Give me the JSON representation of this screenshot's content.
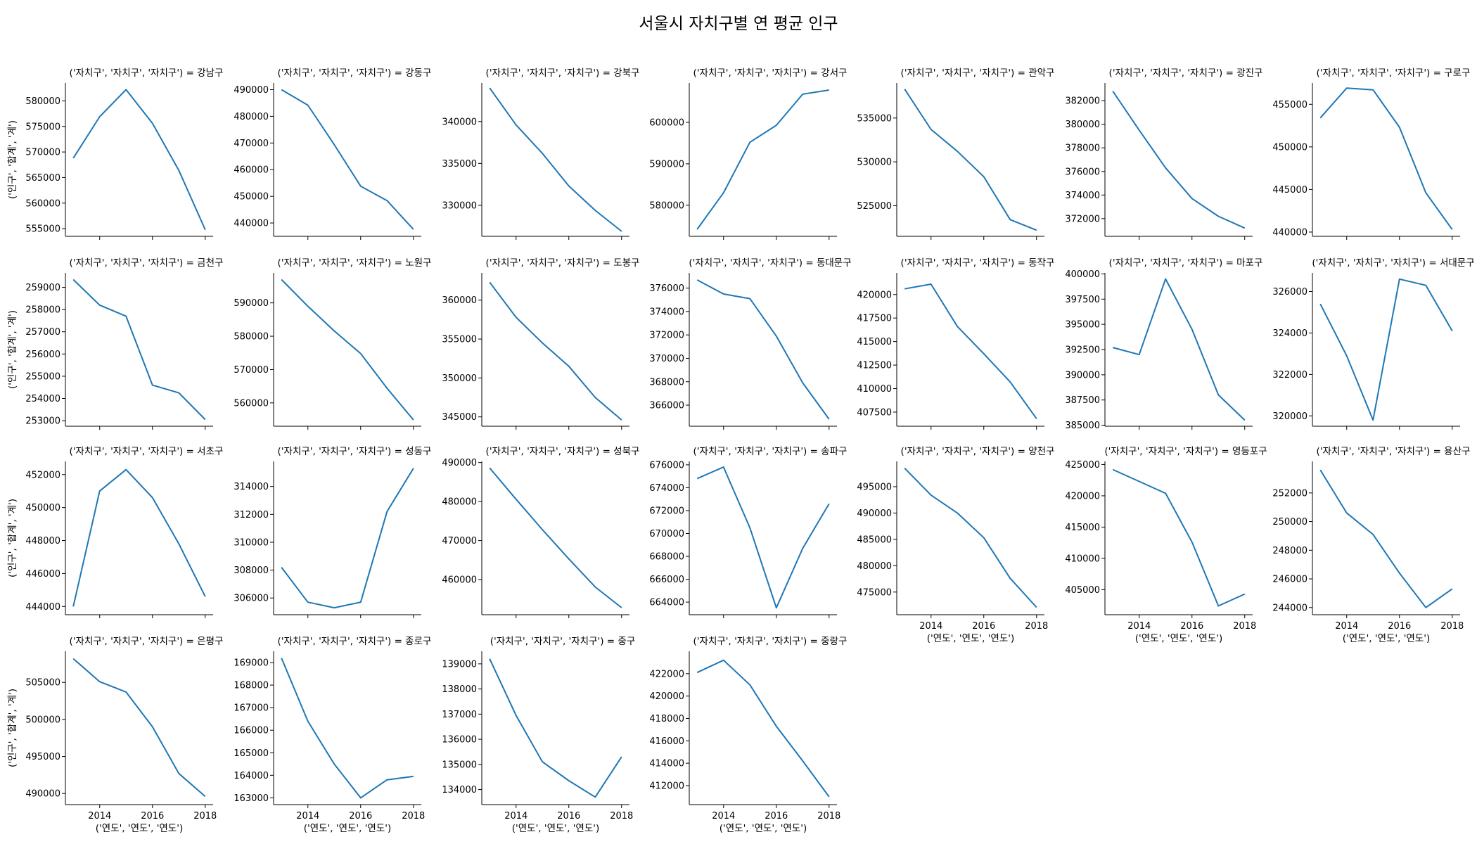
{
  "suptitle": "서울시 자치구별 연 평균 인구",
  "series_color": "#1f77b4",
  "chart_data": {
    "type": "line",
    "layout": "facet-grid",
    "facet_columns": 7,
    "x": [
      2013,
      2014,
      2015,
      2016,
      2017,
      2018
    ],
    "xticks": [
      2014,
      2016,
      2018
    ],
    "xlabel": "('연도', '연도', '연도')",
    "ylabel": "('인구', '합계', '계')",
    "title_prefix": "('자치구', '자치구', '자치구') = ",
    "facets": [
      {
        "name": "강남구",
        "values": [
          568800,
          576900,
          582200,
          575600,
          566400,
          554800
        ],
        "ylim": [
          553500,
          583500
        ],
        "yticks": [
          555000,
          560000,
          565000,
          570000,
          575000,
          580000
        ]
      },
      {
        "name": "강동구",
        "values": [
          490000,
          484200,
          469400,
          453800,
          448400,
          437600
        ],
        "ylim": [
          435000,
          492500
        ],
        "yticks": [
          440000,
          450000,
          460000,
          470000,
          480000,
          490000
        ]
      },
      {
        "name": "강북구",
        "values": [
          344000,
          339600,
          336200,
          332300,
          329400,
          326900
        ],
        "ylim": [
          326300,
          344600
        ],
        "yticks": [
          330000,
          335000,
          340000
        ]
      },
      {
        "name": "강서구",
        "values": [
          574200,
          583000,
          595200,
          599300,
          606800,
          607800
        ],
        "ylim": [
          572500,
          609500
        ],
        "yticks": [
          580000,
          590000,
          600000
        ]
      },
      {
        "name": "관악구",
        "values": [
          538300,
          533700,
          531200,
          528300,
          523400,
          522200
        ],
        "ylim": [
          521500,
          539000
        ],
        "yticks": [
          525000,
          530000,
          535000
        ]
      },
      {
        "name": "광진구",
        "values": [
          382800,
          379500,
          376300,
          373700,
          372200,
          371200
        ],
        "ylim": [
          370500,
          383500
        ],
        "yticks": [
          372000,
          374000,
          376000,
          378000,
          380000,
          382000
        ]
      },
      {
        "name": "구로구",
        "values": [
          453400,
          456900,
          456700,
          452300,
          444600,
          440300
        ],
        "ylim": [
          439500,
          457500
        ],
        "yticks": [
          440000,
          445000,
          450000,
          455000
        ]
      },
      {
        "name": "금천구",
        "values": [
          259350,
          258200,
          257700,
          254600,
          254250,
          253050
        ],
        "ylim": [
          252750,
          259650
        ],
        "yticks": [
          253000,
          254000,
          255000,
          256000,
          257000,
          258000,
          259000
        ]
      },
      {
        "name": "노원구",
        "values": [
          597000,
          589000,
          581600,
          574800,
          564400,
          554900
        ],
        "ylim": [
          553000,
          599000
        ],
        "yticks": [
          560000,
          570000,
          580000,
          590000
        ]
      },
      {
        "name": "도봉구",
        "values": [
          362300,
          357800,
          354500,
          351500,
          347500,
          344600
        ],
        "ylim": [
          343800,
          363500
        ],
        "yticks": [
          345000,
          350000,
          355000,
          360000
        ]
      },
      {
        "name": "동대문구",
        "values": [
          376700,
          375500,
          375100,
          371900,
          367900,
          364800
        ],
        "ylim": [
          364200,
          377300
        ],
        "yticks": [
          366000,
          368000,
          370000,
          372000,
          374000,
          376000
        ]
      },
      {
        "name": "동작구",
        "values": [
          420600,
          421100,
          416600,
          413700,
          410700,
          406800
        ],
        "ylim": [
          406000,
          422300
        ],
        "yticks": [
          407500,
          410000,
          412500,
          415000,
          417500,
          420000
        ]
      },
      {
        "name": "마포구",
        "values": [
          392700,
          392000,
          399500,
          394500,
          388000,
          385500
        ],
        "ylim": [
          384900,
          400100
        ],
        "yticks": [
          385000,
          387500,
          390000,
          392500,
          395000,
          397500,
          400000
        ]
      },
      {
        "name": "서대문구",
        "values": [
          325400,
          322900,
          319800,
          326600,
          326300,
          324100
        ],
        "ylim": [
          319500,
          326900
        ],
        "yticks": [
          320000,
          322000,
          324000,
          326000
        ]
      },
      {
        "name": "서초구",
        "values": [
          444000,
          451000,
          452300,
          450600,
          447800,
          444600
        ],
        "ylim": [
          443500,
          452800
        ],
        "yticks": [
          444000,
          446000,
          448000,
          450000,
          452000
        ]
      },
      {
        "name": "성동구",
        "values": [
          308200,
          305700,
          305300,
          305700,
          312200,
          315300
        ],
        "ylim": [
          304800,
          315800
        ],
        "yticks": [
          306000,
          308000,
          310000,
          312000,
          314000
        ]
      },
      {
        "name": "성북구",
        "values": [
          488600,
          480600,
          472800,
          465300,
          458100,
          452800
        ],
        "ylim": [
          451000,
          490300
        ],
        "yticks": [
          460000,
          470000,
          480000,
          490000
        ]
      },
      {
        "name": "송파구",
        "values": [
          674800,
          675800,
          670500,
          663500,
          668700,
          672600
        ],
        "ylim": [
          662900,
          676300
        ],
        "yticks": [
          664000,
          666000,
          668000,
          670000,
          672000,
          674000,
          676000
        ]
      },
      {
        "name": "양천구",
        "values": [
          498500,
          493400,
          490000,
          485300,
          477600,
          472100
        ],
        "ylim": [
          470700,
          499800
        ],
        "yticks": [
          475000,
          480000,
          485000,
          490000,
          495000
        ]
      },
      {
        "name": "영등포구",
        "values": [
          424200,
          422300,
          420400,
          412600,
          402400,
          404300
        ],
        "ylim": [
          401000,
          425500
        ],
        "yticks": [
          405000,
          410000,
          415000,
          420000,
          425000
        ]
      },
      {
        "name": "용산구",
        "values": [
          253600,
          250600,
          249100,
          246400,
          244000,
          245300
        ],
        "ylim": [
          243500,
          254200
        ],
        "yticks": [
          244000,
          246000,
          248000,
          250000,
          252000
        ]
      },
      {
        "name": "은평구",
        "values": [
          508200,
          505100,
          503700,
          499000,
          492700,
          489600
        ],
        "ylim": [
          488500,
          509200
        ],
        "yticks": [
          490000,
          495000,
          500000,
          505000
        ]
      },
      {
        "name": "종로구",
        "values": [
          169200,
          166400,
          164500,
          163000,
          163800,
          163950
        ],
        "ylim": [
          162700,
          169500
        ],
        "yticks": [
          163000,
          164000,
          165000,
          166000,
          167000,
          168000,
          169000
        ]
      },
      {
        "name": "중구",
        "values": [
          139200,
          136950,
          135100,
          134350,
          133700,
          135300
        ],
        "ylim": [
          133400,
          139500
        ],
        "yticks": [
          134000,
          135000,
          136000,
          137000,
          138000,
          139000
        ]
      },
      {
        "name": "중랑구",
        "values": [
          422100,
          423200,
          421000,
          417300,
          414200,
          411000
        ],
        "ylim": [
          410300,
          424000
        ],
        "yticks": [
          412000,
          414000,
          416000,
          418000,
          420000,
          422000
        ]
      }
    ]
  }
}
